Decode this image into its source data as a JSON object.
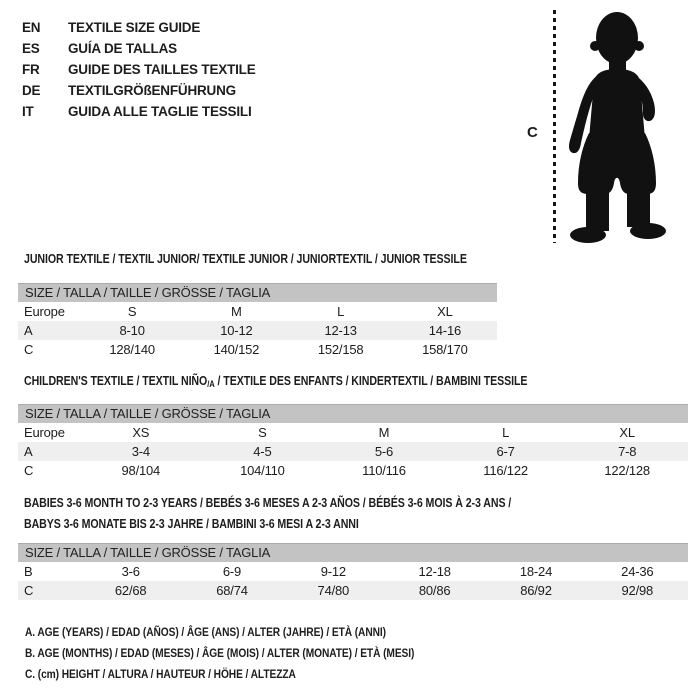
{
  "colors": {
    "background": "#ffffff",
    "text": "#1d1d1d",
    "size_header_bar": "#c3c3c3",
    "row_stripe": "#efefef",
    "silhouette": "#111111"
  },
  "languages": [
    {
      "code": "EN",
      "label": "TEXTILE SIZE GUIDE"
    },
    {
      "code": "ES",
      "label": "GUÍA DE TALLAS"
    },
    {
      "code": "FR",
      "label": "GUIDE DES TAILLES TEXTILE"
    },
    {
      "code": "DE",
      "label": "TEXTILGRÖßENFÜHRUNG"
    },
    {
      "code": "IT",
      "label": "GUIDA ALLE TAGLIE TESSILI"
    }
  ],
  "figure": {
    "measure_label": "C",
    "icon": "toddler-silhouette"
  },
  "tables": [
    {
      "title": "JUNIOR TEXTILE / TEXTIL JUNIOR/ TEXTILE JUNIOR / JUNIORTEXTIL / JUNIOR TESSILE",
      "size_header": "SIZE / TALLA / TAILLE / GRÖSSE / TAGLIA",
      "rows": [
        {
          "label": "Europe",
          "cells": [
            "S",
            "M",
            "L",
            "XL"
          ],
          "shaded": false
        },
        {
          "label": "A",
          "cells": [
            "8-10",
            "10-12",
            "12-13",
            "14-16"
          ],
          "shaded": true
        },
        {
          "label": "C",
          "cells": [
            "128/140",
            "140/152",
            "152/158",
            "158/170"
          ],
          "shaded": false
        }
      ]
    },
    {
      "title_prefix": "CHILDREN'S TEXTILE / TEXTIL NIÑO",
      "title_subscript": "/A",
      "title_suffix": " / TEXTILE DES ENFANTS / KINDERTEXTIL / BAMBINI TESSILE",
      "size_header": "SIZE / TALLA / TAILLE / GRÖSSE / TAGLIA",
      "rows": [
        {
          "label": "Europe",
          "cells": [
            "XS",
            "S",
            "M",
            "L",
            "XL"
          ],
          "shaded": false
        },
        {
          "label": "A",
          "cells": [
            "3-4",
            "4-5",
            "5-6",
            "6-7",
            "7-8"
          ],
          "shaded": true
        },
        {
          "label": "C",
          "cells": [
            "98/104",
            "104/110",
            "110/116",
            "116/122",
            "122/128"
          ],
          "shaded": false
        }
      ]
    },
    {
      "title_lines": [
        "BABIES 3-6 MONTH TO 2-3 YEARS / BEBÉS 3-6 MESES A 2-3 AÑOS / BÉBÉS 3-6 MOIS À 2-3 ANS /",
        "BABYS 3-6 MONATE BIS 2-3 JAHRE / BAMBINI 3-6 MESI A 2-3 ANNI"
      ],
      "size_header": "SIZE / TALLA / TAILLE / GRÖSSE / TAGLIA",
      "rows": [
        {
          "label": "B",
          "cells": [
            "3-6",
            "6-9",
            "9-12",
            "12-18",
            "18-24",
            "24-36"
          ],
          "shaded": false
        },
        {
          "label": "C",
          "cells": [
            "62/68",
            "68/74",
            "74/80",
            "80/86",
            "86/92",
            "92/98"
          ],
          "shaded": true
        }
      ]
    }
  ],
  "footnotes": [
    "A. AGE (YEARS) / EDAD (AÑOS) / ÂGE (ANS) / ALTER (JAHRE) / ETÀ (ANNI)",
    "B. AGE (MONTHS) / EDAD (MESES) / ÂGE (MOIS) / ALTER (MONATE) / ETÀ (MESI)",
    "C. (cm) HEIGHT / ALTURA / HAUTEUR / HÖHE / ALTEZZA"
  ]
}
